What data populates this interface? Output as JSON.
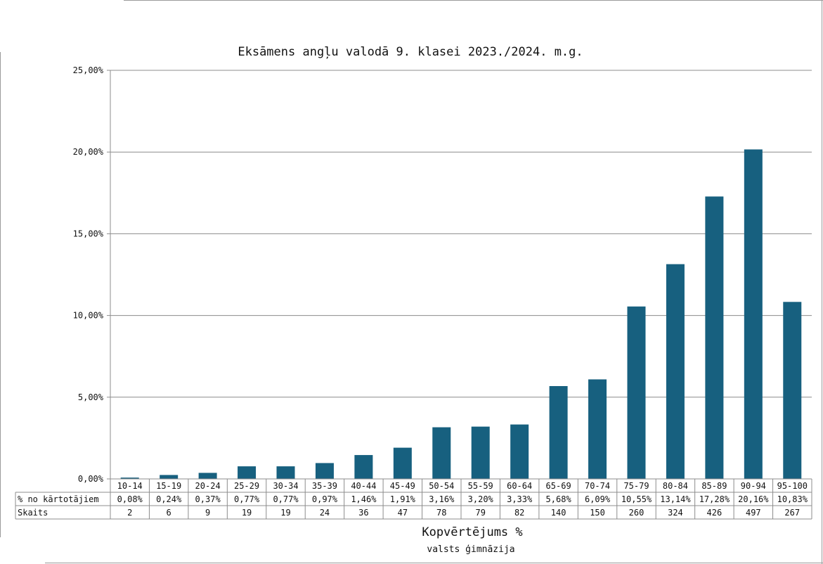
{
  "chart_data": {
    "type": "bar",
    "title": "Eksāmens angļu valodā 9. klasei 2023./2024. m.g.",
    "xlabel": "Kopvērtējums %",
    "subtitle": "valsts ģimnāzija",
    "ylim": [
      0,
      25
    ],
    "y_ticks": [
      "0,00%",
      "5,00%",
      "10,00%",
      "15,00%",
      "20,00%",
      "25,00%"
    ],
    "y_tick_values": [
      0,
      5,
      10,
      15,
      20,
      25
    ],
    "grid": true,
    "bar_color": "#17607f",
    "categories": [
      "10-14",
      "15-19",
      "20-24",
      "25-29",
      "30-34",
      "35-39",
      "40-44",
      "45-49",
      "50-54",
      "55-59",
      "60-64",
      "65-69",
      "70-74",
      "75-79",
      "80-84",
      "85-89",
      "90-94",
      "95-100"
    ],
    "values": [
      0.08,
      0.24,
      0.37,
      0.77,
      0.77,
      0.97,
      1.46,
      1.91,
      3.16,
      3.2,
      3.33,
      5.68,
      6.09,
      10.55,
      13.14,
      17.28,
      20.16,
      10.83
    ],
    "table": {
      "rows": [
        {
          "label": "% no kārtotājiem",
          "cells": [
            "0,08%",
            "0,24%",
            "0,37%",
            "0,77%",
            "0,77%",
            "0,97%",
            "1,46%",
            "1,91%",
            "3,16%",
            "3,20%",
            "3,33%",
            "5,68%",
            "6,09%",
            "10,55%",
            "13,14%",
            "17,28%",
            "20,16%",
            "10,83%"
          ]
        },
        {
          "label": "Skaits",
          "cells": [
            "2",
            "6",
            "9",
            "19",
            "19",
            "24",
            "36",
            "47",
            "78",
            "79",
            "82",
            "140",
            "150",
            "260",
            "324",
            "426",
            "497",
            "267"
          ]
        }
      ]
    }
  }
}
